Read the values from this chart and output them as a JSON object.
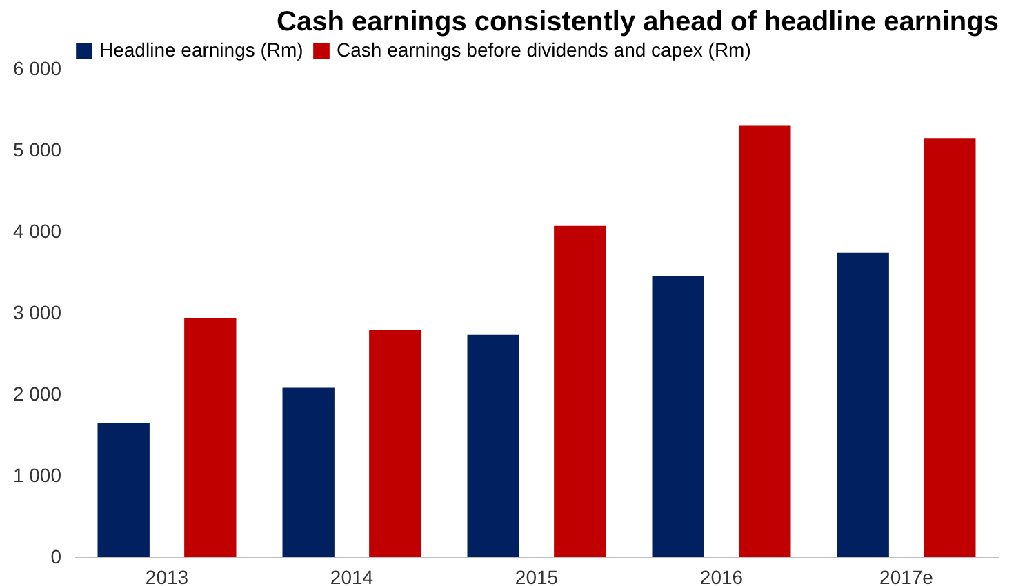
{
  "chart_data": {
    "type": "bar",
    "title": "Cash earnings consistently ahead of headline earnings",
    "categories": [
      "2013",
      "2014",
      "2015",
      "2016",
      "2017e"
    ],
    "series": [
      {
        "name": "Headline earnings (Rm)",
        "color": "#002060",
        "values": [
          1650,
          2080,
          2730,
          3450,
          3740
        ]
      },
      {
        "name": "Cash earnings before dividends and capex (Rm)",
        "color": "#c00000",
        "values": [
          2940,
          2790,
          4070,
          5300,
          5150
        ]
      }
    ],
    "ylim": [
      0,
      6000
    ],
    "yticks": [
      0,
      {
        "value": 1000,
        "label": "1 000"
      },
      {
        "value": 2000,
        "label": "2 000"
      },
      {
        "value": 3000,
        "label": "3 000"
      },
      {
        "value": 4000,
        "label": "4 000"
      },
      {
        "value": 5000,
        "label": "5 000"
      },
      {
        "value": 6000,
        "label": "6 000"
      }
    ],
    "grid": false,
    "legend": "top"
  }
}
